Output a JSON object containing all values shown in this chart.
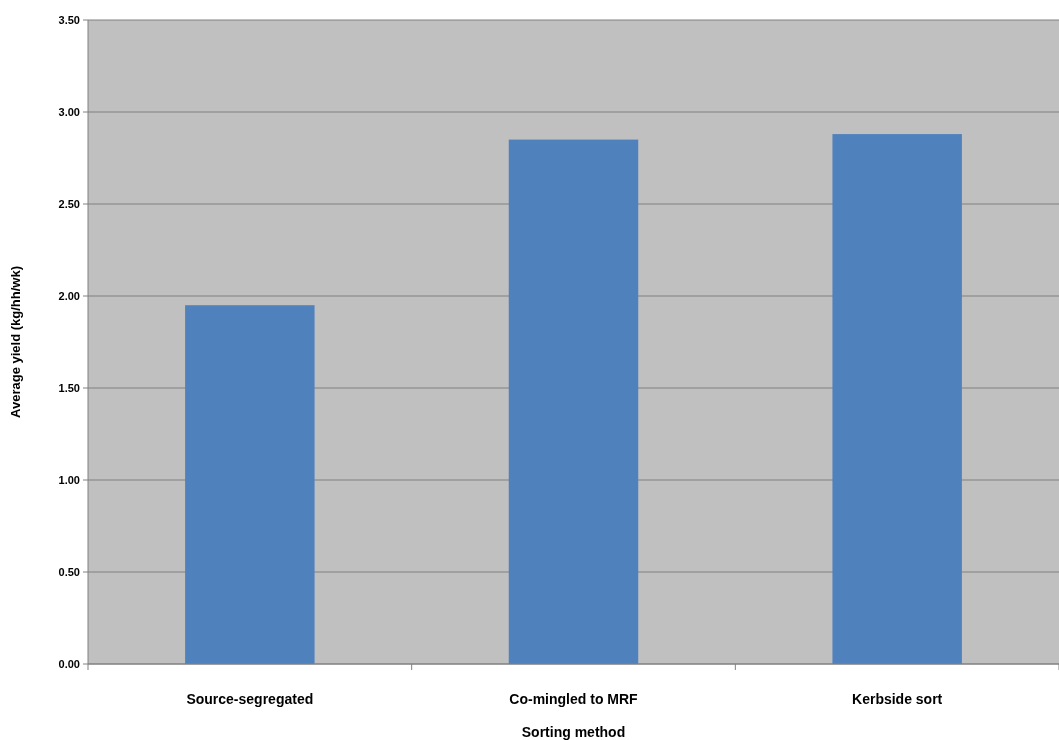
{
  "chart_data": {
    "type": "bar",
    "xlabel": "Sorting method",
    "ylabel": "Average yield (kg/hh/wk)",
    "categories": [
      "Source-segregated",
      "Co-mingled to MRF",
      "Kerbside sort"
    ],
    "values": [
      1.95,
      2.85,
      2.88
    ],
    "color": "#4f81bd",
    "ylim": [
      0,
      3.5
    ],
    "yticks": [
      {
        "value": 0,
        "label": "0.00"
      },
      {
        "value": 0.5,
        "label": "0.50"
      },
      {
        "value": 1,
        "label": "1.00"
      },
      {
        "value": 1.5,
        "label": "1.50"
      },
      {
        "value": 2,
        "label": "2.00"
      },
      {
        "value": 2.5,
        "label": "2.50"
      },
      {
        "value": 3,
        "label": "3.00"
      },
      {
        "value": 3.5,
        "label": "3.50"
      }
    ],
    "grid": "y"
  }
}
